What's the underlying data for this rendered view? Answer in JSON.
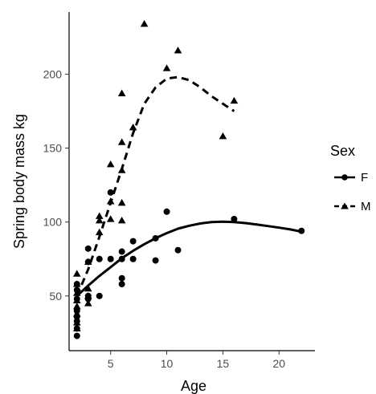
{
  "chart_data": {
    "type": "scatter",
    "title": "",
    "xlabel": "Age",
    "ylabel": "Spring body mass kg",
    "xlim": [
      1.3,
      23.2
    ],
    "ylim": [
      13,
      242
    ],
    "x_ticks": [
      5,
      10,
      15,
      20
    ],
    "y_ticks": [
      50,
      100,
      150,
      200
    ],
    "grid": false,
    "legend": {
      "title": "Sex",
      "placement": "right"
    },
    "series": [
      {
        "name": "F",
        "marker": "circle",
        "line_style": "solid",
        "color": "#000000",
        "points": [
          [
            2,
            23
          ],
          [
            2,
            28
          ],
          [
            2,
            33
          ],
          [
            2,
            36
          ],
          [
            2,
            40
          ],
          [
            2,
            48
          ],
          [
            2,
            54
          ],
          [
            2,
            58
          ],
          [
            3,
            48
          ],
          [
            3,
            50
          ],
          [
            3,
            73
          ],
          [
            3,
            82
          ],
          [
            4,
            50
          ],
          [
            4,
            75
          ],
          [
            5,
            75
          ],
          [
            5,
            120
          ],
          [
            6,
            58
          ],
          [
            6,
            62
          ],
          [
            6,
            75
          ],
          [
            6,
            80
          ],
          [
            7,
            75
          ],
          [
            7,
            87
          ],
          [
            9,
            74
          ],
          [
            9,
            89
          ],
          [
            10,
            107
          ],
          [
            11,
            81
          ],
          [
            16,
            102
          ],
          [
            22,
            94
          ]
        ],
        "trend": [
          [
            2,
            50
          ],
          [
            3,
            57
          ],
          [
            4,
            63.5
          ],
          [
            5,
            69.5
          ],
          [
            6,
            75.5
          ],
          [
            7,
            80.5
          ],
          [
            8,
            85
          ],
          [
            9,
            89
          ],
          [
            10,
            92.5
          ],
          [
            11,
            95.5
          ],
          [
            12,
            97.5
          ],
          [
            13,
            99
          ],
          [
            14,
            100
          ],
          [
            15,
            100.2
          ],
          [
            16,
            100
          ],
          [
            17,
            99.3
          ],
          [
            18,
            98.3
          ],
          [
            19,
            97.3
          ],
          [
            20,
            96.2
          ],
          [
            21,
            95
          ],
          [
            22,
            93.5
          ]
        ]
      },
      {
        "name": "M",
        "marker": "triangle",
        "line_style": "dashed",
        "color": "#000000",
        "points": [
          [
            2,
            28
          ],
          [
            2,
            32
          ],
          [
            2,
            38
          ],
          [
            2,
            43
          ],
          [
            2,
            47
          ],
          [
            2,
            52
          ],
          [
            2,
            58
          ],
          [
            2,
            65
          ],
          [
            3,
            45
          ],
          [
            3,
            50
          ],
          [
            3,
            55
          ],
          [
            3,
            73
          ],
          [
            4,
            93
          ],
          [
            4,
            101
          ],
          [
            4,
            104
          ],
          [
            5,
            102
          ],
          [
            5,
            114
          ],
          [
            5,
            139
          ],
          [
            6,
            101
          ],
          [
            6,
            113
          ],
          [
            6,
            135
          ],
          [
            6,
            154
          ],
          [
            6,
            187
          ],
          [
            7,
            164
          ],
          [
            8,
            234
          ],
          [
            10,
            204
          ],
          [
            11,
            216
          ],
          [
            15,
            158
          ],
          [
            16,
            182
          ]
        ],
        "trend": [
          [
            2,
            50
          ],
          [
            3,
            68
          ],
          [
            4,
            90
          ],
          [
            5,
            113
          ],
          [
            6,
            136
          ],
          [
            7,
            160
          ],
          [
            8,
            180
          ],
          [
            9,
            191
          ],
          [
            10,
            197
          ],
          [
            11,
            198
          ],
          [
            12,
            196
          ],
          [
            13,
            191
          ],
          [
            14,
            185
          ],
          [
            15,
            180
          ],
          [
            16,
            175
          ]
        ]
      }
    ]
  }
}
